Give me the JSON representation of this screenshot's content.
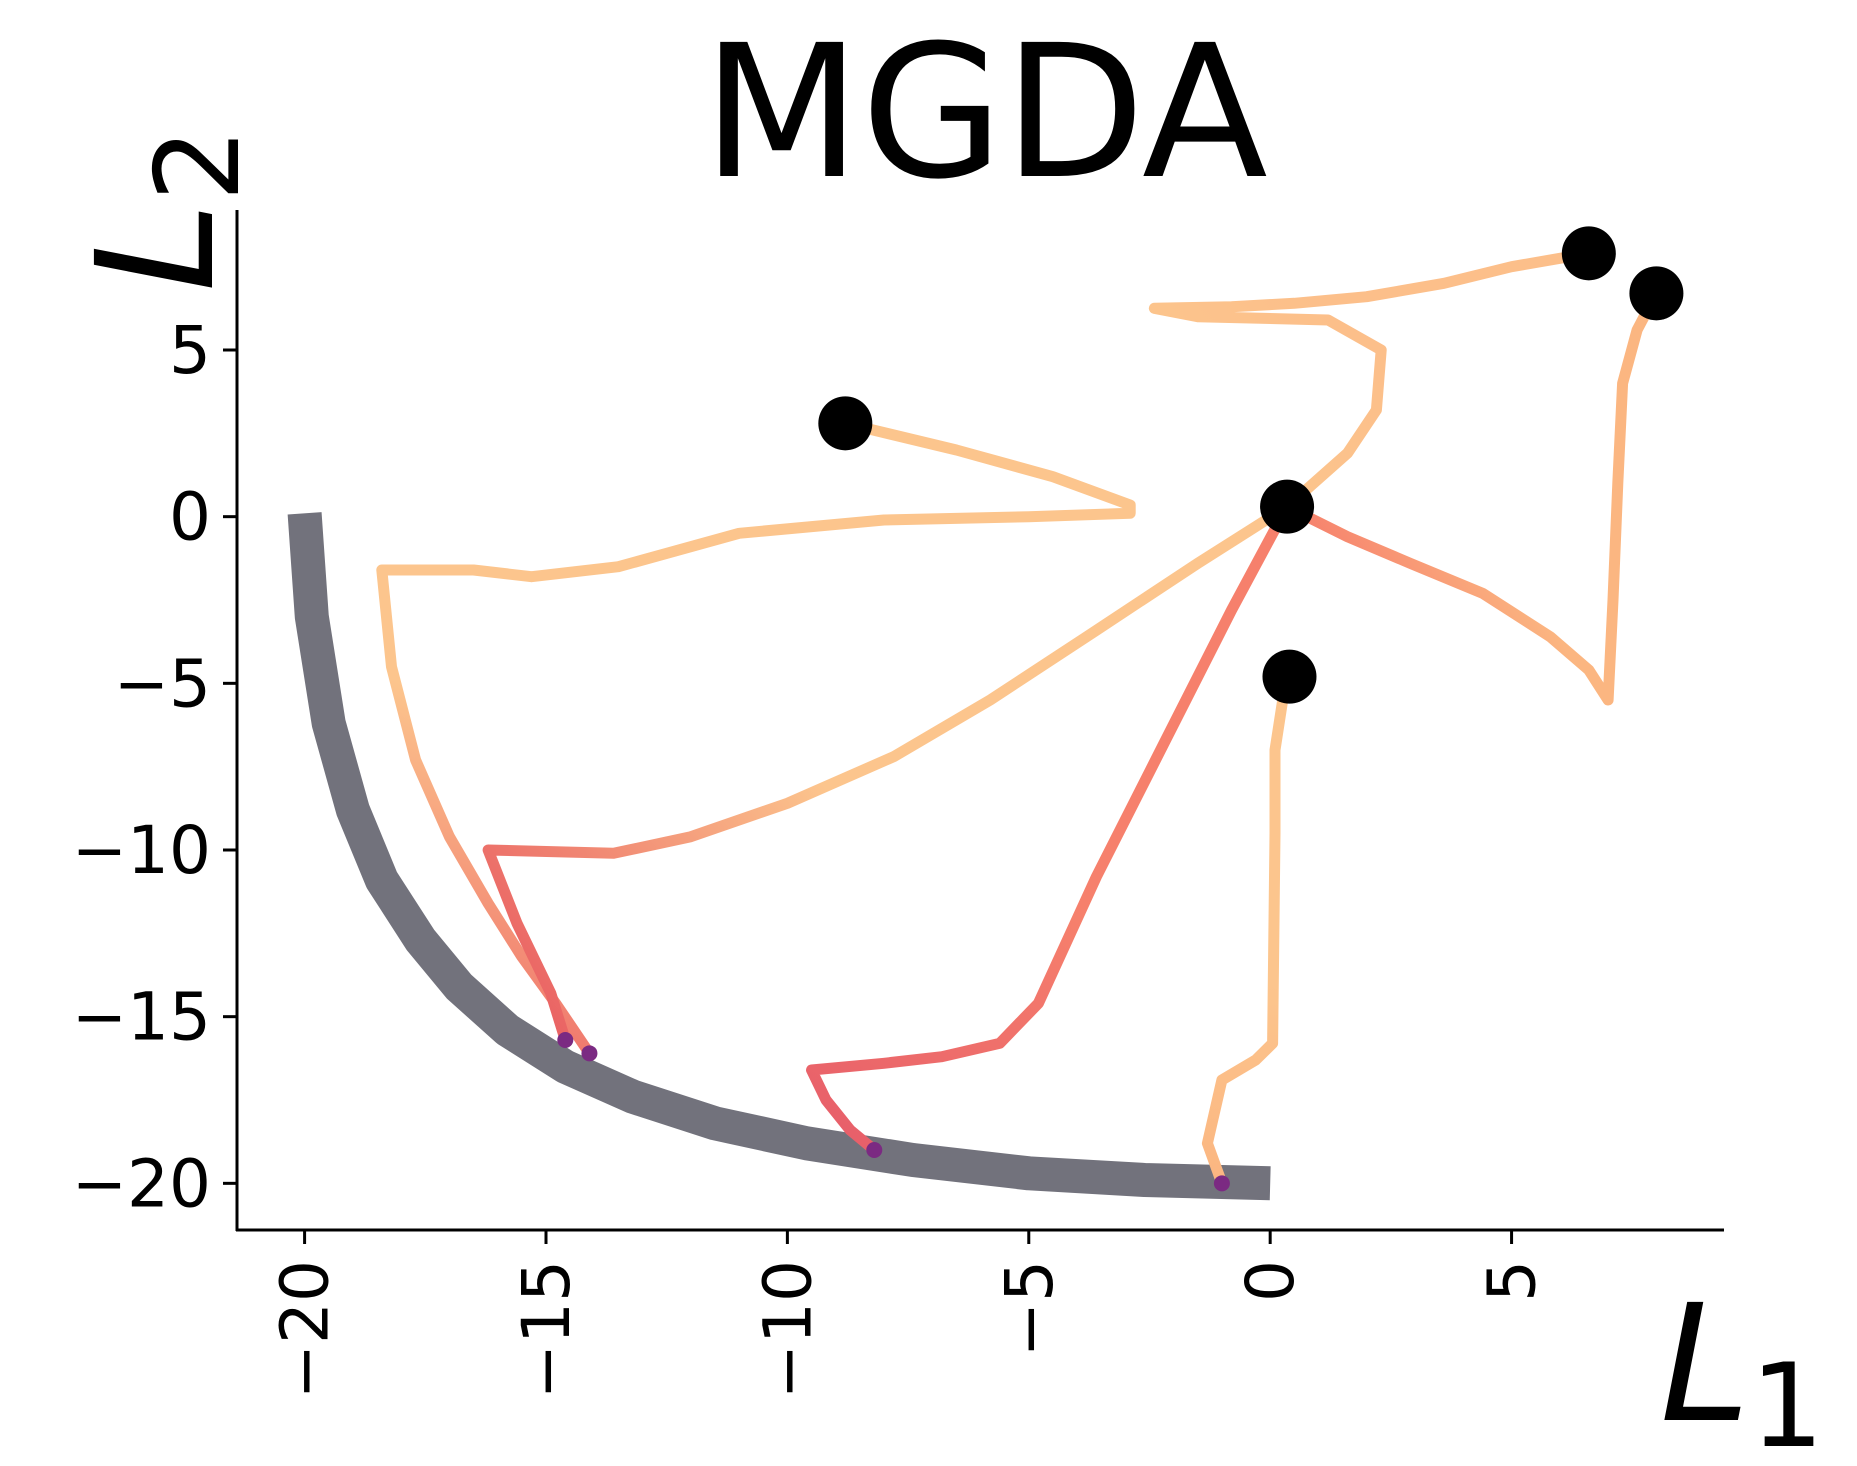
{
  "chart_data": {
    "type": "line",
    "title": "MGDA",
    "xlabel": "L",
    "xlabel_sub": "1",
    "ylabel": "L",
    "ylabel_sub": "2",
    "xlim": [
      -21.4,
      9.4
    ],
    "ylim": [
      -21.4,
      9.2
    ],
    "x_ticks": [
      -20,
      -15,
      -10,
      -5,
      0,
      5
    ],
    "y_ticks": [
      5,
      0,
      -5,
      -10,
      -15,
      -20
    ],
    "x_tick_labels": [
      "−20",
      "−15",
      "−10",
      "−5",
      "0",
      "5"
    ],
    "y_tick_labels": [
      "5",
      "0",
      "−5",
      "−10",
      "−15",
      "−20"
    ],
    "pareto_front": {
      "name": "Pareto front",
      "color": "#72727c",
      "x": [
        -20.0,
        -19.85,
        -19.5,
        -19.0,
        -18.4,
        -17.6,
        -16.8,
        -15.8,
        -14.6,
        -13.2,
        -11.5,
        -9.6,
        -7.4,
        -5.0,
        -2.6,
        0.0
      ],
      "y": [
        0.1,
        -3.0,
        -6.2,
        -8.8,
        -10.9,
        -12.7,
        -14.1,
        -15.4,
        -16.5,
        -17.4,
        -18.2,
        -18.8,
        -19.3,
        -19.7,
        -19.9,
        -20.0
      ]
    },
    "start_points": {
      "name": "initial points",
      "color": "#000000",
      "x": [
        -8.8,
        0.35,
        0.4,
        6.6,
        8.0
      ],
      "y": [
        2.8,
        0.3,
        -4.8,
        7.9,
        6.7
      ]
    },
    "end_points": {
      "name": "final points",
      "color": "#7b2a82",
      "x": [
        -14.6,
        -14.1,
        -8.2,
        -1.0
      ],
      "y": [
        -15.7,
        -16.1,
        -19.0,
        -20.0
      ]
    },
    "trajectories": [
      {
        "name": "trajectory 1",
        "color": "#fcc58d",
        "end_color": "#f07a6e",
        "x": [
          -8.8,
          -6.5,
          -4.5,
          -2.9,
          -2.9,
          -5.0,
          -8.0,
          -11.0,
          -13.5,
          -15.3,
          -16.5,
          -17.4,
          -18.1,
          -18.4,
          -18.2,
          -17.7,
          -17.0,
          -16.2,
          -15.5,
          -14.8,
          -14.1
        ],
        "y": [
          2.8,
          2.0,
          1.2,
          0.35,
          0.1,
          0.0,
          -0.1,
          -0.5,
          -1.5,
          -1.8,
          -1.6,
          -1.6,
          -1.6,
          -1.6,
          -4.5,
          -7.3,
          -9.6,
          -11.6,
          -13.2,
          -14.6,
          -16.1
        ]
      },
      {
        "name": "trajectory 2",
        "color": "#fcc58d",
        "end_color": "#ea6464",
        "x": [
          0.35,
          -1.5,
          -3.8,
          -5.8,
          -7.8,
          -10.0,
          -12.0,
          -13.6,
          -16.2,
          -15.6,
          -14.9,
          -14.6
        ],
        "y": [
          0.3,
          -1.4,
          -3.6,
          -5.5,
          -7.2,
          -8.6,
          -9.6,
          -10.1,
          -10.0,
          -12.2,
          -14.3,
          -15.7
        ]
      },
      {
        "name": "trajectory 3",
        "color": "#f6806c",
        "end_color": "#e8606a",
        "x": [
          0.35,
          -0.8,
          -2.2,
          -3.6,
          -4.8,
          -5.6,
          -6.8,
          -8.0,
          -9.5,
          -9.2,
          -8.7,
          -8.2
        ],
        "y": [
          0.3,
          -2.8,
          -6.8,
          -10.8,
          -14.6,
          -15.8,
          -16.2,
          -16.4,
          -16.6,
          -17.5,
          -18.4,
          -19.0
        ]
      },
      {
        "name": "trajectory 4",
        "color": "#fcc58d",
        "end_color": "#fbb681",
        "x": [
          0.4,
          0.25,
          0.1,
          0.1,
          0.05,
          -0.3,
          -1.0,
          -1.3,
          -1.0
        ],
        "y": [
          -4.8,
          -5.6,
          -7.0,
          -9.5,
          -15.8,
          -16.3,
          -16.9,
          -18.8,
          -20.0
        ]
      },
      {
        "name": "trajectory 5",
        "color": "#fcbf8a",
        "end_color": "#fcc58d",
        "x": [
          6.6,
          5.0,
          3.6,
          2.0,
          0.5,
          -0.8,
          -2.4,
          -1.5,
          1.2,
          2.3,
          2.2,
          1.6,
          0.35
        ],
        "y": [
          7.9,
          7.5,
          7.0,
          6.6,
          6.4,
          6.3,
          6.25,
          6.0,
          5.9,
          5.0,
          3.2,
          1.9,
          0.3
        ]
      },
      {
        "name": "trajectory 6",
        "color": "#fbb681",
        "end_color": "#f6806c",
        "x": [
          8.0,
          7.6,
          7.3,
          7.2,
          7.1,
          7.0,
          6.6,
          5.8,
          4.4,
          2.9,
          1.6,
          0.35
        ],
        "y": [
          6.7,
          5.6,
          4.0,
          1.0,
          -2.5,
          -5.5,
          -4.6,
          -3.6,
          -2.3,
          -1.4,
          -0.6,
          0.3
        ]
      }
    ]
  }
}
